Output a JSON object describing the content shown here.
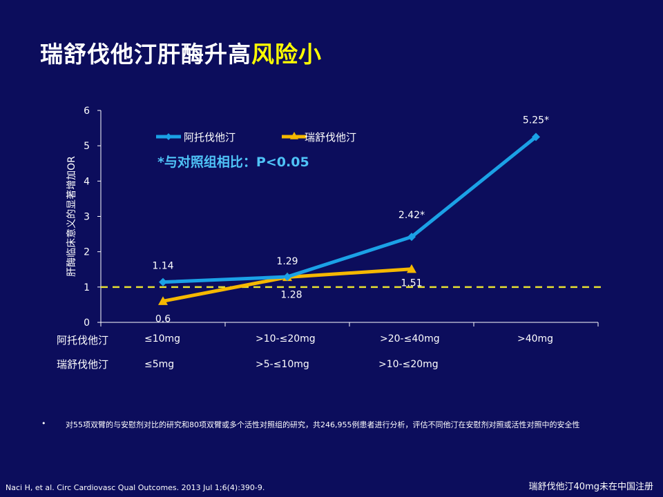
{
  "slide": {
    "title_main": "瑞舒伐他汀肝酶升高",
    "title_highlight": "风险小",
    "footnote_bullet": "•",
    "footnote": "对55项双臂的与安慰剂对比的研究和80项双臂或多个活性对照组的研究，共246,955例患者进行分析，评估不同他汀在安慰剂对照或活性对照中的安全性",
    "reference": "Naci H, et al. Circ Cardiovasc Qual Outcomes. 2013 Jul 1;6(4):390-9.",
    "note": "瑞舒伐他汀40mg未在中国注册"
  },
  "dose_rows": {
    "atorvastatin_label": "阿托伐他汀",
    "atorvastatin_doses": [
      "≤10mg",
      ">10-≤20mg",
      ">20-≤40mg",
      ">40mg"
    ],
    "rosuvastatin_label": "瑞舒伐他汀",
    "rosuvastatin_doses": [
      "≤5mg",
      ">5-≤10mg",
      ">10-≤20mg"
    ]
  },
  "colors": {
    "atorvastatin": "#1ba1e6",
    "rosuvastatin": "#f5b800",
    "reference_line": "#e8e030",
    "highlight_text": "#4fc3f7"
  },
  "chart_data": {
    "type": "line",
    "ylabel": "肝酶临床意义的显著增加OR",
    "ylim": [
      0,
      6
    ],
    "yticks": [
      "0",
      "1",
      "2",
      "3",
      "4",
      "5",
      "6"
    ],
    "reference_line_y": 1,
    "annotation": "*与对照组相比：P<0.05",
    "legend_position": "top-left",
    "series": [
      {
        "name": "阿托伐他汀",
        "x": [
          0,
          1,
          2,
          3
        ],
        "values": [
          1.14,
          1.29,
          2.42,
          5.25
        ],
        "labels": [
          "1.14",
          "1.29",
          "2.42*",
          "5.25*"
        ],
        "marker": "diamond"
      },
      {
        "name": "瑞舒伐他汀",
        "x": [
          0,
          1,
          2
        ],
        "values": [
          0.6,
          1.28,
          1.51
        ],
        "labels": [
          "0.6",
          "1.28",
          "1.51"
        ],
        "marker": "triangle"
      }
    ]
  }
}
